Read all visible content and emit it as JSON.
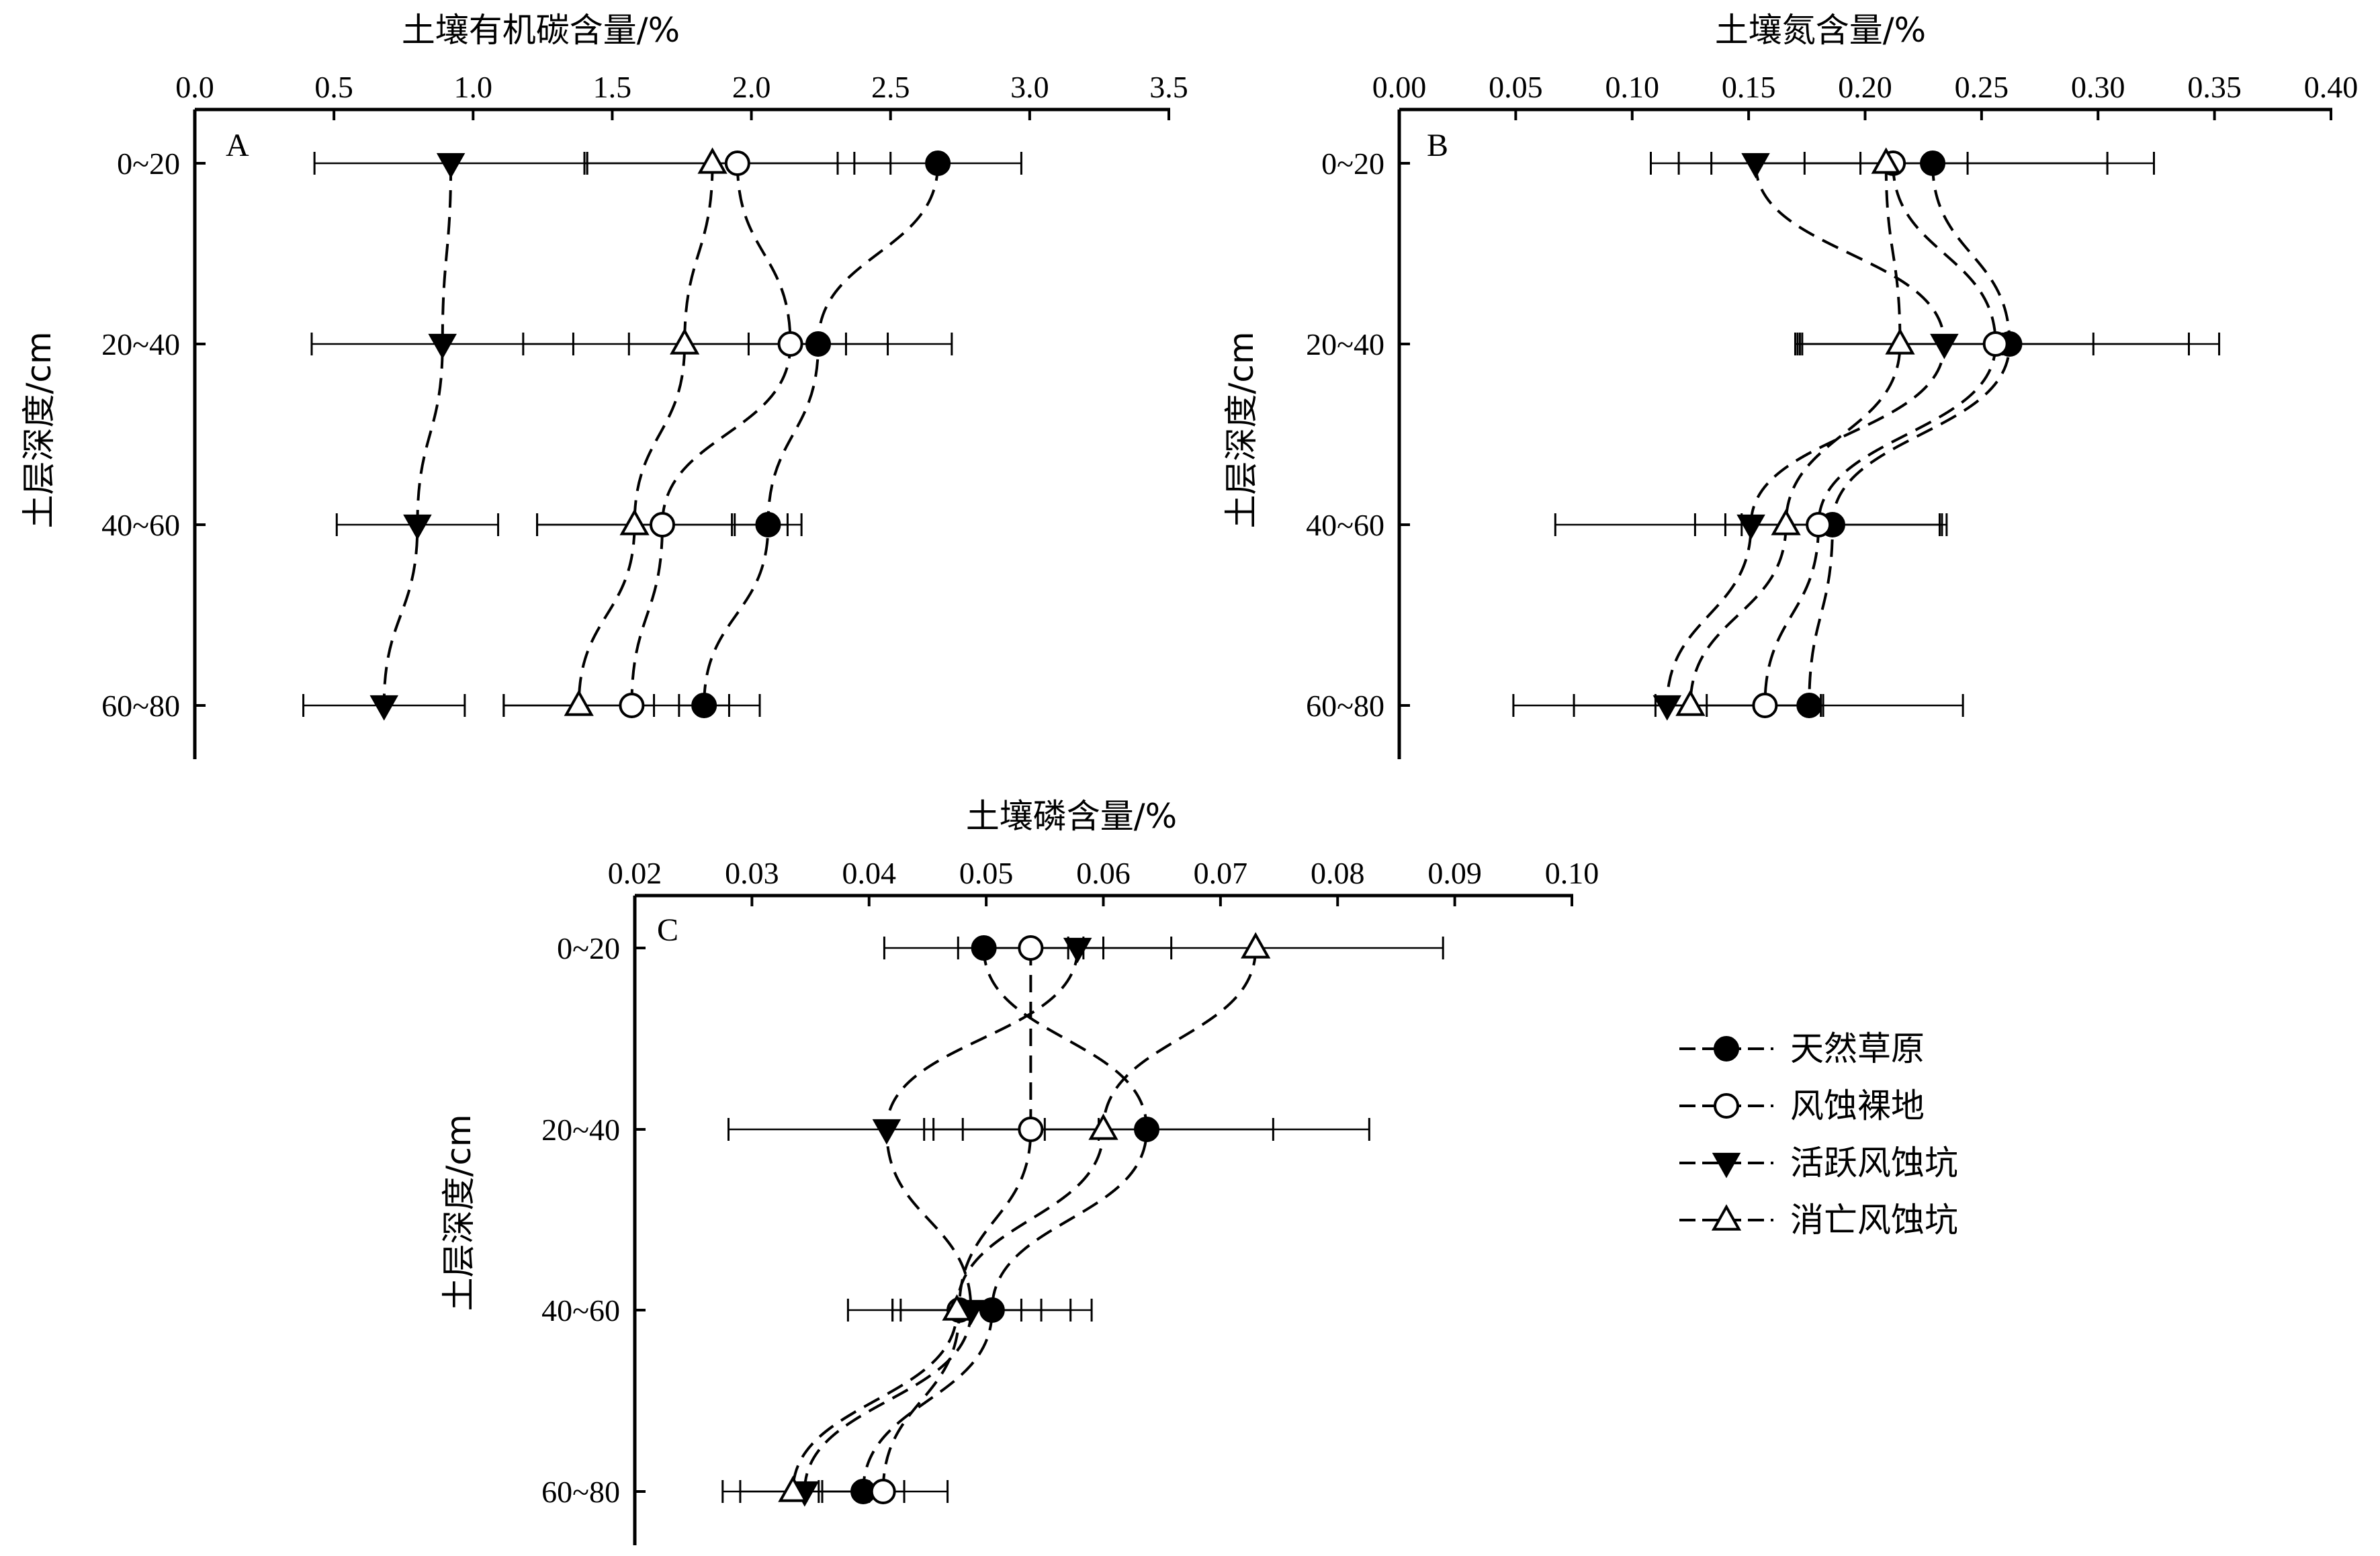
{
  "chart_data": [
    {
      "panel": "A",
      "type": "line",
      "xlabel": "土壤有机碳含量/%",
      "ylabel": "土层深度/cm",
      "xlim": [
        0,
        3.5
      ],
      "xticks": [
        "0.0",
        "0.5",
        "1.0",
        "1.5",
        "2.0",
        "2.5",
        "3.0",
        "3.5"
      ],
      "categories": [
        "0~20",
        "20~40",
        "40~60",
        "60~80"
      ],
      "series": [
        {
          "name": "天然草原",
          "marker": "filled-circle",
          "values": [
            2.67,
            2.24,
            2.06,
            1.83
          ],
          "err": [
            0.3,
            0.25,
            0.12,
            0.09
          ]
        },
        {
          "name": "风蚀裸地",
          "marker": "open-circle",
          "values": [
            1.95,
            2.14,
            1.68,
            1.57
          ],
          "err": [
            0.55,
            0.58,
            0.45,
            0.46
          ]
        },
        {
          "name": "活跃风蚀坑",
          "marker": "filled-triangle-down",
          "values": [
            0.92,
            0.89,
            0.8,
            0.68
          ],
          "err": [
            0.49,
            0.47,
            0.29,
            0.29
          ]
        },
        {
          "name": "消亡风蚀坑",
          "marker": "open-triangle-up",
          "values": [
            1.86,
            1.76,
            1.58,
            1.38
          ],
          "err": [
            0.45,
            0.58,
            0.35,
            0.27
          ]
        }
      ]
    },
    {
      "panel": "B",
      "type": "line",
      "xlabel": "土壤氮含量/%",
      "ylabel": "土层深度/cm",
      "xlim": [
        0,
        0.4
      ],
      "xticks": [
        "0.00",
        "0.05",
        "0.10",
        "0.15",
        "0.20",
        "0.25",
        "0.30",
        "0.35",
        "0.40"
      ],
      "categories": [
        "0~20",
        "20~40",
        "40~60",
        "60~80"
      ],
      "series": [
        {
          "name": "天然草原",
          "marker": "filled-circle",
          "values": [
            0.229,
            0.262,
            0.186,
            0.176
          ],
          "err": [
            0.095,
            0.09,
            0.046,
            0.066
          ]
        },
        {
          "name": "风蚀裸地",
          "marker": "open-circle",
          "values": [
            0.212,
            0.256,
            0.18,
            0.157
          ],
          "err": [
            0.092,
            0.083,
            0.053,
            0.025
          ]
        },
        {
          "name": "活跃风蚀坑",
          "marker": "filled-triangle-down",
          "values": [
            0.153,
            0.234,
            0.151,
            0.115
          ],
          "err": [
            0.045,
            0.064,
            0.084,
            0.066
          ]
        },
        {
          "name": "消亡风蚀坑",
          "marker": "open-triangle-up",
          "values": [
            0.209,
            0.215,
            0.166,
            0.125
          ],
          "err": [
            0.035,
            0.044,
            0.019,
            0.05
          ]
        }
      ]
    },
    {
      "panel": "C",
      "type": "line",
      "xlabel": "土壤磷含量/%",
      "ylabel": "土层深度/cm",
      "xlim": [
        0.02,
        0.1
      ],
      "xticks": [
        "0.02",
        "0.03",
        "0.04",
        "0.05",
        "0.06",
        "0.07",
        "0.08",
        "0.09",
        "0.10"
      ],
      "categories": [
        "0~20",
        "20~40",
        "40~60",
        "60~80"
      ],
      "series": [
        {
          "name": "天然草原",
          "marker": "filled-circle",
          "values": [
            0.0498,
            0.0637,
            0.0505,
            0.0395
          ],
          "err": [
            0.0085,
            0.019,
            0.0085,
            0.0035
          ]
        },
        {
          "name": "风蚀裸地",
          "marker": "open-circle",
          "values": [
            0.0538,
            0.0538,
            0.0477,
            0.0412
          ],
          "err": [
            0.0062,
            0.0058,
            0.0095,
            0.0055
          ]
        },
        {
          "name": "活跃风蚀坑",
          "marker": "filled-triangle-down",
          "values": [
            0.0578,
            0.0415,
            0.0487,
            0.0345
          ],
          "err": [
            0.008,
            0.0135,
            0.006,
            0.0055
          ]
        },
        {
          "name": "消亡风蚀坑",
          "marker": "open-triangle-up",
          "values": [
            0.073,
            0.06,
            0.0475,
            0.0335
          ],
          "err": [
            0.016,
            0.0145,
            0.0055,
            0.006
          ]
        }
      ]
    }
  ],
  "legend": {
    "items": [
      {
        "label": "天然草原",
        "marker": "filled-circle"
      },
      {
        "label": "风蚀裸地",
        "marker": "open-circle"
      },
      {
        "label": "活跃风蚀坑",
        "marker": "filled-triangle-down"
      },
      {
        "label": "消亡风蚀坑",
        "marker": "open-triangle-up"
      }
    ]
  },
  "colors": {
    "ink": "#000000",
    "background": "#ffffff"
  }
}
